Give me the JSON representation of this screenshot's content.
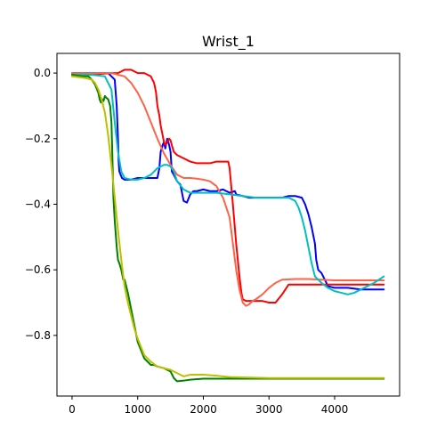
{
  "chart_data": {
    "type": "line",
    "title": "Wrist_1",
    "xlabel": "",
    "ylabel": "",
    "xlim": [
      -230,
      4990
    ],
    "ylim": [
      -0.985,
      0.06
    ],
    "xticks": [
      0,
      1000,
      2000,
      3000,
      4000
    ],
    "xtick_labels": [
      "0",
      "1000",
      "2000",
      "3000",
      "4000"
    ],
    "yticks": [
      0.0,
      -0.2,
      -0.4,
      -0.6,
      -0.8
    ],
    "ytick_labels": [
      "0.0",
      "−0.2",
      "−0.4",
      "−0.6",
      "−0.8"
    ],
    "grid": false,
    "series": [
      {
        "color": "#0000ff",
        "x": [
          0,
          300,
          420,
          480,
          500,
          550,
          600,
          650,
          680,
          700,
          710,
          720,
          760,
          800,
          900,
          1000,
          1100,
          1200,
          1300,
          1330,
          1350,
          1380,
          1400,
          1420,
          1450,
          1480,
          1500,
          1520,
          1550,
          1600,
          1650,
          1700,
          1750,
          1800,
          1850,
          1900,
          2000,
          2100,
          2200,
          2300,
          2400,
          2480,
          2500,
          2600,
          2700,
          2800,
          2900,
          3000,
          3100,
          3200,
          3300,
          3400,
          3500,
          3550,
          3600,
          3650,
          3700,
          3720,
          3750,
          3800,
          3850,
          3900,
          4000,
          4200,
          4400,
          4600,
          4750
        ],
        "y": [
          0.0,
          0.0,
          0.0,
          0.0,
          0.0,
          0.0,
          -0.01,
          -0.02,
          -0.1,
          -0.2,
          -0.27,
          -0.3,
          -0.32,
          -0.325,
          -0.325,
          -0.32,
          -0.32,
          -0.32,
          -0.32,
          -0.29,
          -0.24,
          -0.22,
          -0.21,
          -0.23,
          -0.2,
          -0.22,
          -0.24,
          -0.3,
          -0.31,
          -0.33,
          -0.34,
          -0.39,
          -0.395,
          -0.37,
          -0.36,
          -0.36,
          -0.355,
          -0.36,
          -0.36,
          -0.355,
          -0.365,
          -0.36,
          -0.37,
          -0.375,
          -0.38,
          -0.38,
          -0.38,
          -0.38,
          -0.38,
          -0.38,
          -0.375,
          -0.375,
          -0.38,
          -0.4,
          -0.43,
          -0.47,
          -0.52,
          -0.57,
          -0.6,
          -0.61,
          -0.63,
          -0.65,
          -0.655,
          -0.655,
          -0.66,
          -0.66,
          -0.66
        ]
      },
      {
        "color": "#ff0000",
        "x": [
          0,
          200,
          400,
          600,
          700,
          750,
          800,
          850,
          900,
          950,
          1000,
          1100,
          1200,
          1250,
          1280,
          1300,
          1330,
          1350,
          1380,
          1400,
          1420,
          1450,
          1480,
          1500,
          1520,
          1550,
          1600,
          1700,
          1800,
          1900,
          2000,
          2100,
          2200,
          2300,
          2380,
          2400,
          2450,
          2500,
          2550,
          2580,
          2600,
          2650,
          2700,
          2800,
          2900,
          3000,
          3100,
          3200,
          3300,
          3500,
          3800,
          4000,
          4400,
          4750
        ],
        "y": [
          -0.005,
          -0.005,
          -0.003,
          0.0,
          0.0,
          0.005,
          0.01,
          0.01,
          0.01,
          0.005,
          0.0,
          0.0,
          -0.01,
          -0.03,
          -0.06,
          -0.1,
          -0.13,
          -0.16,
          -0.19,
          -0.21,
          -0.22,
          -0.21,
          -0.2,
          -0.205,
          -0.22,
          -0.24,
          -0.25,
          -0.26,
          -0.27,
          -0.275,
          -0.275,
          -0.275,
          -0.27,
          -0.27,
          -0.27,
          -0.29,
          -0.4,
          -0.52,
          -0.62,
          -0.67,
          -0.69,
          -0.695,
          -0.695,
          -0.695,
          -0.695,
          -0.7,
          -0.7,
          -0.675,
          -0.645,
          -0.645,
          -0.645,
          -0.645,
          -0.645,
          -0.645
        ]
      },
      {
        "color": "#ff6347",
        "x": [
          0,
          300,
          600,
          800,
          900,
          1000,
          1100,
          1200,
          1300,
          1400,
          1500,
          1600,
          1700,
          1800,
          1900,
          2000,
          2100,
          2200,
          2300,
          2400,
          2450,
          2500,
          2550,
          2600,
          2650,
          2700,
          2750,
          2800,
          2900,
          3000,
          3100,
          3200,
          3400,
          3600,
          3800,
          4000,
          4400,
          4750
        ],
        "y": [
          0.0,
          0.0,
          0.0,
          -0.01,
          -0.03,
          -0.06,
          -0.1,
          -0.15,
          -0.2,
          -0.245,
          -0.28,
          -0.31,
          -0.32,
          -0.32,
          -0.322,
          -0.325,
          -0.33,
          -0.345,
          -0.38,
          -0.44,
          -0.52,
          -0.6,
          -0.66,
          -0.7,
          -0.71,
          -0.705,
          -0.695,
          -0.69,
          -0.675,
          -0.655,
          -0.64,
          -0.63,
          -0.628,
          -0.628,
          -0.63,
          -0.632,
          -0.632,
          -0.632
        ]
      },
      {
        "color": "#00bfbf",
        "x": [
          0,
          300,
          500,
          600,
          650,
          700,
          750,
          800,
          900,
          1000,
          1100,
          1200,
          1300,
          1400,
          1450,
          1500,
          1550,
          1600,
          1700,
          1800,
          1900,
          2000,
          2200,
          2400,
          2600,
          2800,
          3000,
          3200,
          3300,
          3400,
          3450,
          3500,
          3550,
          3600,
          3650,
          3700,
          3800,
          3900,
          4000,
          4100,
          4200,
          4300,
          4400,
          4500,
          4600,
          4750
        ],
        "y": [
          -0.005,
          -0.005,
          -0.01,
          -0.05,
          -0.15,
          -0.24,
          -0.3,
          -0.32,
          -0.325,
          -0.325,
          -0.32,
          -0.31,
          -0.29,
          -0.28,
          -0.28,
          -0.285,
          -0.3,
          -0.33,
          -0.355,
          -0.365,
          -0.365,
          -0.365,
          -0.365,
          -0.37,
          -0.375,
          -0.38,
          -0.38,
          -0.38,
          -0.38,
          -0.39,
          -0.41,
          -0.44,
          -0.48,
          -0.53,
          -0.58,
          -0.62,
          -0.64,
          -0.655,
          -0.665,
          -0.67,
          -0.675,
          -0.67,
          -0.66,
          -0.65,
          -0.64,
          -0.62
        ]
      },
      {
        "color": "#008000",
        "x": [
          0,
          150,
          250,
          300,
          350,
          380,
          400,
          420,
          440,
          460,
          480,
          500,
          520,
          550,
          580,
          600,
          610,
          620,
          630,
          650,
          680,
          700,
          720,
          750,
          780,
          800,
          850,
          900,
          950,
          1000,
          1100,
          1200,
          1250,
          1300,
          1400,
          1500,
          1550,
          1600,
          1700,
          1800,
          2000,
          2200,
          2400,
          2600,
          3000,
          3500,
          4000,
          4400,
          4750
        ],
        "y": [
          -0.005,
          -0.01,
          -0.01,
          -0.02,
          -0.035,
          -0.05,
          -0.06,
          -0.08,
          -0.09,
          -0.08,
          -0.085,
          -0.07,
          -0.075,
          -0.08,
          -0.1,
          -0.15,
          -0.22,
          -0.3,
          -0.38,
          -0.45,
          -0.53,
          -0.57,
          -0.58,
          -0.6,
          -0.63,
          -0.63,
          -0.67,
          -0.72,
          -0.77,
          -0.82,
          -0.87,
          -0.89,
          -0.89,
          -0.895,
          -0.9,
          -0.91,
          -0.93,
          -0.94,
          -0.938,
          -0.935,
          -0.932,
          -0.932,
          -0.932,
          -0.932,
          -0.932,
          -0.932,
          -0.932,
          -0.932,
          -0.932
        ]
      },
      {
        "color": "#bfbf00",
        "x": [
          0,
          200,
          300,
          350,
          400,
          450,
          500,
          550,
          600,
          650,
          700,
          750,
          800,
          850,
          900,
          950,
          1000,
          1100,
          1200,
          1300,
          1400,
          1500,
          1600,
          1700,
          1800,
          1900,
          2000,
          2200,
          2400,
          2600,
          3000,
          3500,
          4000,
          4400,
          4750
        ],
        "y": [
          -0.01,
          -0.015,
          -0.02,
          -0.03,
          -0.05,
          -0.08,
          -0.12,
          -0.19,
          -0.28,
          -0.38,
          -0.48,
          -0.57,
          -0.65,
          -0.7,
          -0.74,
          -0.78,
          -0.81,
          -0.86,
          -0.88,
          -0.895,
          -0.9,
          -0.905,
          -0.915,
          -0.925,
          -0.92,
          -0.92,
          -0.92,
          -0.923,
          -0.927,
          -0.928,
          -0.93,
          -0.93,
          -0.93,
          -0.93,
          -0.93
        ]
      }
    ]
  }
}
